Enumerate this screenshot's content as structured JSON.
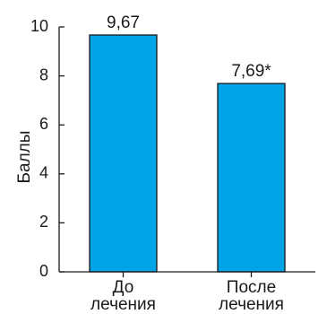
{
  "chart_data": {
    "type": "bar",
    "ylabel": "Баллы",
    "ylim": [
      0,
      10
    ],
    "yticks": [
      0,
      2,
      4,
      6,
      8,
      10
    ],
    "categories": [
      [
        "До",
        "лечения"
      ],
      [
        "После",
        "лечения"
      ]
    ],
    "values": [
      9.67,
      7.69
    ],
    "data_labels": [
      "9,67",
      "7,69*"
    ],
    "bar_color": "#00a3e6",
    "grid": false
  }
}
